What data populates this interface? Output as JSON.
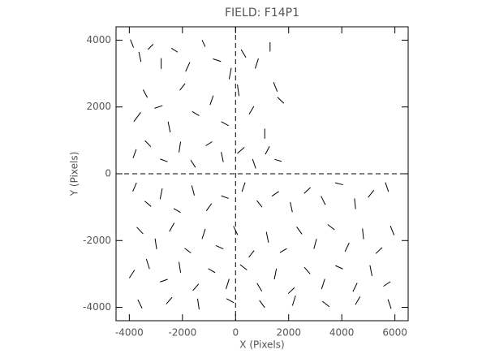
{
  "chart_data": {
    "type": "whisker",
    "title": "FIELD: F14P1",
    "x_label": "X (Pixels)",
    "y_label": "Y (Pixels)",
    "xlim": [
      -4500,
      6500
    ],
    "ylim": [
      -4400,
      4400
    ],
    "xticks": [
      -4000,
      -2000,
      0,
      2000,
      4000,
      6000
    ],
    "yticks": [
      -4000,
      -2000,
      0,
      2000,
      4000
    ],
    "vlines": [
      0
    ],
    "hlines": [
      0
    ],
    "color": "#000000",
    "x": [
      -3900,
      -3600,
      -3200,
      -2800,
      -2300,
      -1800,
      -1200,
      -700,
      -200,
      300,
      800,
      1300,
      1700,
      -3700,
      -3400,
      -2900,
      -2500,
      -2000,
      -1500,
      -900,
      -400,
      100,
      600,
      1100,
      1500,
      -3800,
      -3300,
      -2700,
      -2100,
      -1600,
      -1000,
      -500,
      200,
      700,
      1200,
      1600,
      -3800,
      -3300,
      -2800,
      -2200,
      -1600,
      -1000,
      -400,
      300,
      900,
      1500,
      2100,
      2700,
      3300,
      3900,
      4500,
      5100,
      5700,
      -3600,
      -3000,
      -2400,
      -1800,
      -1200,
      -600,
      0,
      600,
      1200,
      1800,
      2400,
      3000,
      3600,
      4200,
      4800,
      5400,
      5900,
      -3900,
      -3300,
      -2700,
      -2100,
      -1500,
      -900,
      -300,
      300,
      900,
      1500,
      2100,
      2700,
      3300,
      3900,
      4500,
      5100,
      5700,
      -3600,
      -2500,
      -1400,
      -200,
      1000,
      2200,
      3400,
      4600,
      5800
    ],
    "y": [
      3900,
      3500,
      3800,
      3300,
      3700,
      3200,
      3900,
      3400,
      3000,
      3600,
      3300,
      3800,
      2200,
      1700,
      2400,
      2000,
      1400,
      2600,
      1800,
      2200,
      1500,
      2500,
      1900,
      1200,
      2600,
      600,
      900,
      400,
      800,
      300,
      900,
      500,
      700,
      300,
      700,
      400,
      -400,
      -900,
      -600,
      -1100,
      -500,
      -1000,
      -700,
      -400,
      -900,
      -600,
      -1000,
      -500,
      -800,
      -300,
      -900,
      -600,
      -400,
      -1700,
      -2100,
      -1600,
      -2300,
      -1800,
      -2200,
      -1700,
      -2400,
      -1900,
      -2300,
      -1700,
      -2100,
      -1600,
      -2200,
      -1800,
      -2300,
      -1700,
      -3000,
      -2700,
      -3200,
      -2800,
      -3400,
      -2900,
      -3300,
      -2800,
      -3400,
      -3000,
      -3500,
      -2900,
      -3300,
      -2800,
      -3400,
      -2900,
      -3300,
      -3900,
      -3800,
      -3900,
      -3800,
      -3900,
      -3800,
      -3900,
      -3800,
      -3900
    ],
    "dx": [
      60,
      -40,
      100,
      0,
      -120,
      80,
      -60,
      150,
      40,
      -90,
      60,
      0,
      120,
      130,
      -80,
      150,
      -40,
      100,
      -130,
      60,
      140,
      -30,
      90,
      0,
      -70,
      60,
      -110,
      140,
      30,
      -90,
      120,
      -40,
      130,
      -60,
      80,
      -130,
      70,
      -120,
      40,
      130,
      -50,
      100,
      -140,
      60,
      -100,
      130,
      -40,
      120,
      -80,
      150,
      -20,
      110,
      -60,
      120,
      -30,
      90,
      -120,
      60,
      140,
      -80,
      100,
      -40,
      130,
      -100,
      50,
      -130,
      80,
      -20,
      120,
      -70,
      100,
      -60,
      140,
      -30,
      110,
      -130,
      60,
      130,
      -90,
      40,
      120,
      -110,
      60,
      -140,
      80,
      -40,
      130,
      -80,
      110,
      -30,
      140,
      -100,
      60,
      -130,
      90,
      -60
    ],
    "dy": [
      -120,
      150,
      80,
      160,
      60,
      140,
      100,
      -40,
      170,
      120,
      150,
      140,
      -90,
      140,
      120,
      40,
      160,
      100,
      60,
      140,
      -60,
      170,
      120,
      150,
      140,
      130,
      90,
      -40,
      160,
      110,
      60,
      150,
      90,
      140,
      120,
      30,
      130,
      80,
      160,
      -60,
      150,
      110,
      40,
      140,
      100,
      70,
      150,
      90,
      130,
      -30,
      160,
      110,
      140,
      -100,
      160,
      130,
      70,
      150,
      -50,
      130,
      100,
      160,
      60,
      110,
      150,
      80,
      130,
      160,
      90,
      140,
      120,
      150,
      40,
      160,
      100,
      60,
      150,
      -80,
      120,
      160,
      90,
      100,
      150,
      50,
      130,
      160,
      70,
      130,
      100,
      160,
      -60,
      110,
      150,
      80,
      120,
      140
    ]
  }
}
